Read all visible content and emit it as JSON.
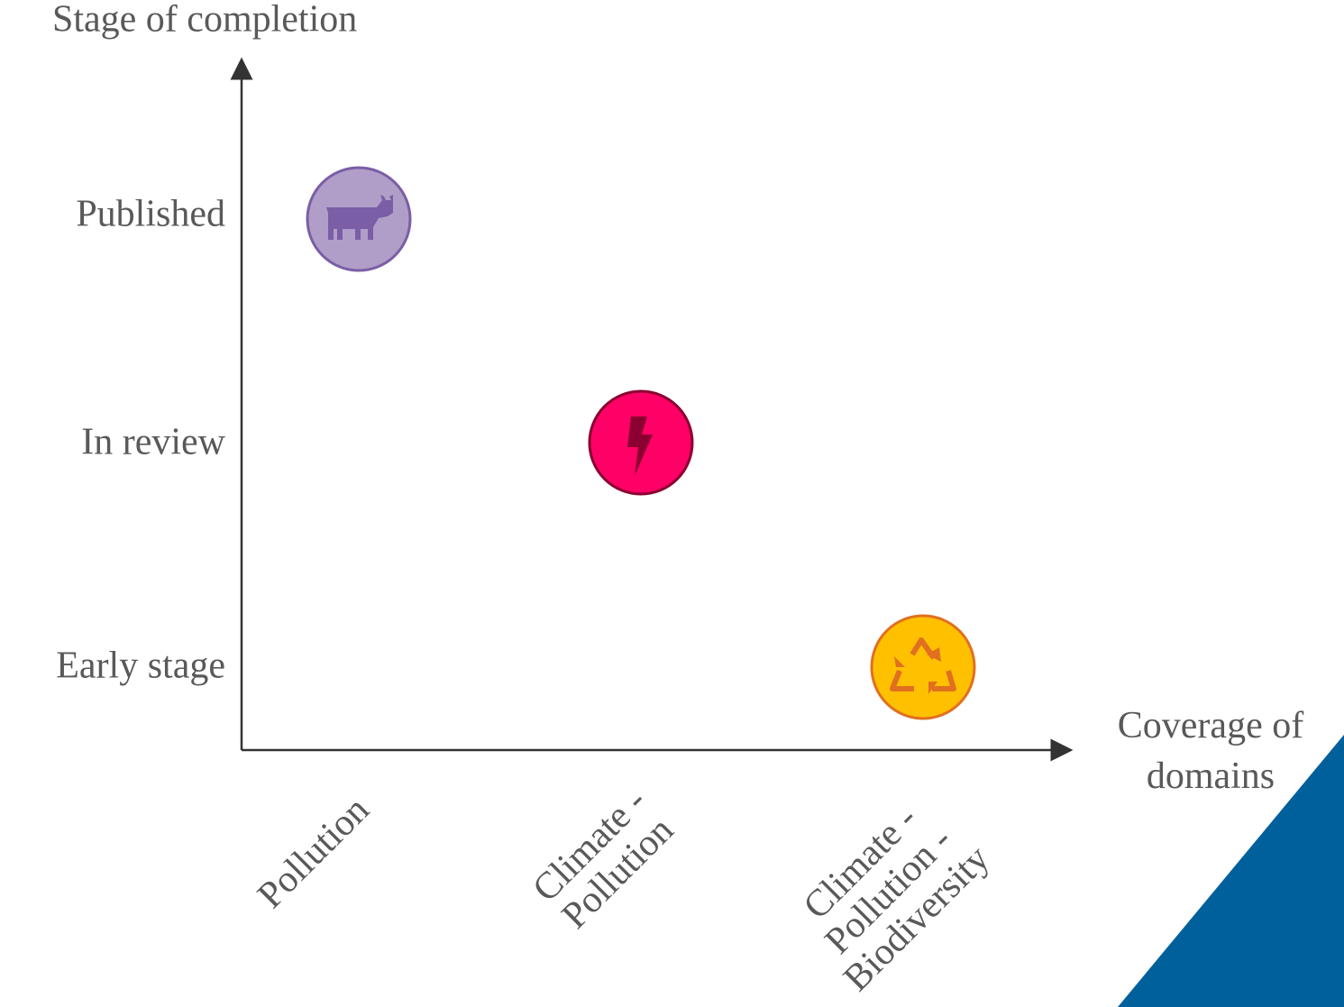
{
  "y_axis": {
    "title": "Stage of completion",
    "labels": [
      "Published",
      "In review",
      "Early stage"
    ]
  },
  "x_axis": {
    "title": [
      "Coverage of",
      "domains"
    ],
    "labels": [
      [
        "Pollution"
      ],
      [
        "Climate -",
        "Pollution"
      ],
      [
        "Climate -",
        "Pollution -",
        "Biodiversity"
      ]
    ]
  }
}
